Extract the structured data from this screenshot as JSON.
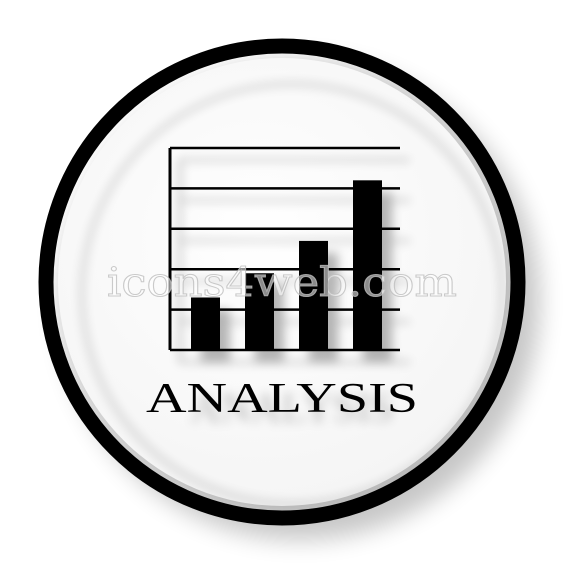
{
  "icon": {
    "name": "analysis-icon",
    "label": "ANALYSIS",
    "colors": {
      "ink": "#000000",
      "background": "#ffffff",
      "face": "#fcfcfc",
      "shadow": "#c9c9c9"
    }
  },
  "chart_data": {
    "type": "bar",
    "title": "",
    "xlabel": "",
    "ylabel": "",
    "categories": [
      "",
      "",
      "",
      ""
    ],
    "values": [
      1.3,
      1.9,
      2.7,
      4.2
    ],
    "ylim": [
      0,
      5
    ],
    "grid": true
  },
  "watermark": {
    "text": "icons4web.com"
  }
}
